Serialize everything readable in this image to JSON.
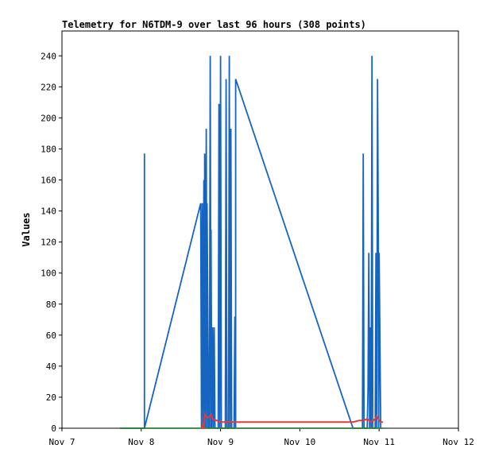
{
  "chart_data": {
    "type": "line",
    "title": "Telemetry for N6TDM-9 over last 96 hours (308 points)",
    "xlabel": "",
    "ylabel": "Values",
    "x_ticks": [
      "Nov 7",
      "Nov 8",
      "Nov 9",
      "Nov 10",
      "Nov 11",
      "Nov 12"
    ],
    "xlim_days": [
      7,
      12
    ],
    "y_ticks": [
      0,
      20,
      40,
      60,
      80,
      100,
      120,
      140,
      160,
      180,
      200,
      220,
      240
    ],
    "ylim": [
      0,
      256
    ],
    "grid": false,
    "legend": "none",
    "series": [
      {
        "color": "#1565c0",
        "points": [
          [
            7.73,
            0
          ],
          [
            8.04,
            0
          ],
          [
            8.04,
            177
          ],
          [
            8.04,
            0
          ],
          [
            8.75,
            145
          ],
          [
            8.76,
            0
          ],
          [
            8.77,
            145
          ],
          [
            8.78,
            0
          ],
          [
            8.79,
            160
          ],
          [
            8.8,
            0
          ],
          [
            8.8,
            177
          ],
          [
            8.81,
            0
          ],
          [
            8.82,
            193
          ],
          [
            8.83,
            0
          ],
          [
            8.83,
            145
          ],
          [
            8.85,
            0
          ],
          [
            8.86,
            0
          ],
          [
            8.87,
            240
          ],
          [
            8.88,
            0
          ],
          [
            8.88,
            128
          ],
          [
            8.89,
            0
          ],
          [
            8.9,
            65
          ],
          [
            8.91,
            0
          ],
          [
            8.92,
            65
          ],
          [
            8.93,
            0
          ],
          [
            8.97,
            0
          ],
          [
            8.98,
            209
          ],
          [
            8.99,
            0
          ],
          [
            9.0,
            240
          ],
          [
            9.01,
            0
          ],
          [
            9.06,
            0
          ],
          [
            9.07,
            225
          ],
          [
            9.08,
            0
          ],
          [
            9.1,
            0
          ],
          [
            9.11,
            240
          ],
          [
            9.12,
            0
          ],
          [
            9.13,
            193
          ],
          [
            9.14,
            0
          ],
          [
            9.17,
            0
          ],
          [
            9.18,
            72
          ],
          [
            9.19,
            0
          ],
          [
            9.19,
            225
          ],
          [
            10.67,
            0
          ],
          [
            10.79,
            0
          ],
          [
            10.8,
            177
          ],
          [
            10.81,
            0
          ],
          [
            10.85,
            0
          ],
          [
            10.86,
            25
          ],
          [
            10.87,
            113
          ],
          [
            10.88,
            0
          ],
          [
            10.89,
            65
          ],
          [
            10.9,
            0
          ],
          [
            10.91,
            240
          ],
          [
            10.92,
            0
          ],
          [
            10.95,
            0
          ],
          [
            10.96,
            113
          ],
          [
            10.97,
            0
          ],
          [
            10.98,
            225
          ],
          [
            10.99,
            121
          ],
          [
            10.995,
            0
          ],
          [
            11.0,
            113
          ],
          [
            11.02,
            0
          ]
        ]
      },
      {
        "color": "#2e7d32",
        "points": [
          [
            7.73,
            0
          ],
          [
            11.05,
            0
          ]
        ]
      },
      {
        "color": "#e53935",
        "points": [
          [
            8.77,
            0
          ],
          [
            8.78,
            3
          ],
          [
            8.79,
            0
          ],
          [
            8.8,
            9
          ],
          [
            8.82,
            7
          ],
          [
            8.85,
            7
          ],
          [
            8.88,
            9
          ],
          [
            8.9,
            6
          ],
          [
            8.95,
            5
          ],
          [
            9.0,
            4
          ],
          [
            9.05,
            4
          ],
          [
            9.2,
            4
          ],
          [
            10.67,
            4
          ],
          [
            10.75,
            5
          ],
          [
            10.8,
            5
          ],
          [
            10.85,
            6
          ],
          [
            10.9,
            4
          ],
          [
            10.95,
            6
          ],
          [
            10.97,
            8
          ],
          [
            10.99,
            6
          ],
          [
            11.02,
            4
          ],
          [
            11.05,
            4
          ]
        ]
      }
    ]
  }
}
